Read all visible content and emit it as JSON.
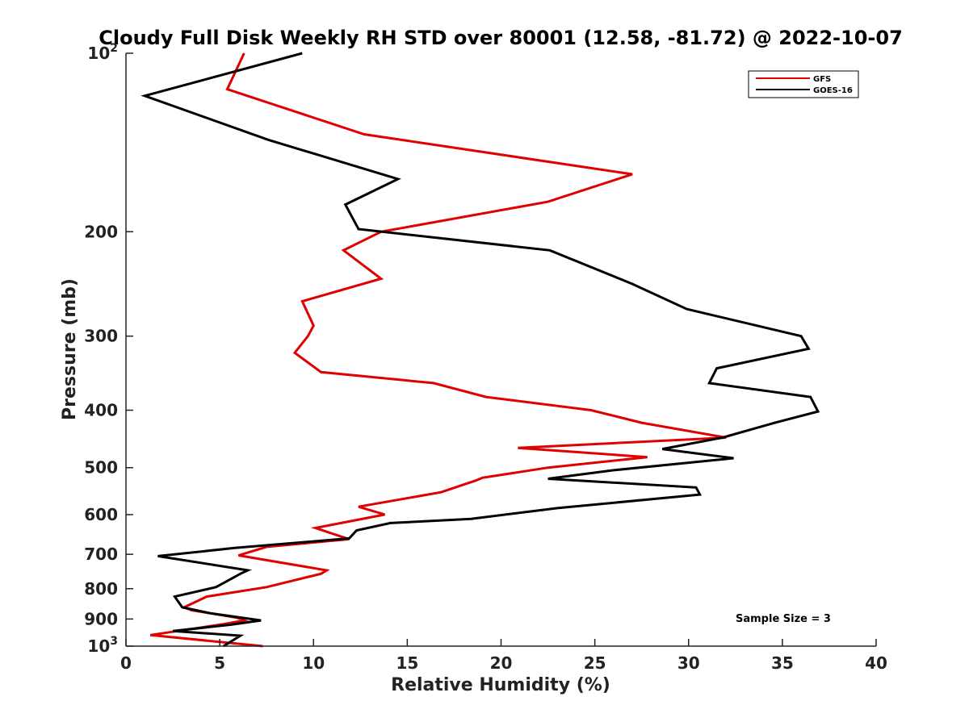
{
  "chart_data": {
    "type": "line",
    "title": "Cloudy Full Disk Weekly RH STD over 80001 (12.58, -81.72) @ 2022-10-07",
    "xlabel": "Relative Humidity (%)",
    "ylabel": "Pressure (mb)",
    "xlim": [
      0,
      40
    ],
    "ylim": [
      100,
      1000
    ],
    "y_scale": "log",
    "y_reversed": true,
    "x_ticks": [
      0,
      5,
      10,
      15,
      20,
      25,
      30,
      35,
      40
    ],
    "y_ticks": [
      {
        "value": 100,
        "label": "10",
        "sup": "2"
      },
      {
        "value": 200,
        "label": "200"
      },
      {
        "value": 300,
        "label": "300"
      },
      {
        "value": 400,
        "label": "400"
      },
      {
        "value": 500,
        "label": "500"
      },
      {
        "value": 600,
        "label": "600"
      },
      {
        "value": 700,
        "label": "700"
      },
      {
        "value": 800,
        "label": "800"
      },
      {
        "value": 900,
        "label": "900"
      },
      {
        "value": 1000,
        "label": "10",
        "sup": "3"
      }
    ],
    "grid": false,
    "legend_position": "top-right",
    "annotation": "Sample Size = 3",
    "series": [
      {
        "name": "GFS",
        "color": "#e00000",
        "points": [
          [
            6.3,
            100
          ],
          [
            5.4,
            115
          ],
          [
            12.7,
            137
          ],
          [
            27.0,
            160
          ],
          [
            22.5,
            178
          ],
          [
            13.6,
            200
          ],
          [
            11.6,
            215
          ],
          [
            13.6,
            240
          ],
          [
            9.4,
            262
          ],
          [
            10.0,
            288
          ],
          [
            9.7,
            300
          ],
          [
            9.0,
            320
          ],
          [
            10.4,
            345
          ],
          [
            16.4,
            360
          ],
          [
            19.2,
            380
          ],
          [
            24.8,
            400
          ],
          [
            27.5,
            420
          ],
          [
            32.0,
            445
          ],
          [
            20.9,
            463
          ],
          [
            27.8,
            480
          ],
          [
            22.5,
            500
          ],
          [
            19.0,
            520
          ],
          [
            18.7,
            525
          ],
          [
            16.8,
            550
          ],
          [
            12.4,
            582
          ],
          [
            13.8,
            600
          ],
          [
            10.1,
            632
          ],
          [
            11.9,
            660
          ],
          [
            7.5,
            680
          ],
          [
            6.0,
            703
          ],
          [
            10.7,
            745
          ],
          [
            10.4,
            755
          ],
          [
            7.5,
            795
          ],
          [
            4.3,
            825
          ],
          [
            3.1,
            860
          ],
          [
            3.5,
            870
          ],
          [
            5.9,
            895
          ],
          [
            6.3,
            905
          ],
          [
            5.2,
            918
          ],
          [
            1.3,
            958
          ],
          [
            7.3,
            1000
          ]
        ]
      },
      {
        "name": "GOES-16",
        "color": "#000000",
        "points": [
          [
            9.4,
            100
          ],
          [
            1.0,
            118
          ],
          [
            7.6,
            140
          ],
          [
            14.5,
            163
          ],
          [
            11.7,
            180
          ],
          [
            12.4,
            198
          ],
          [
            22.6,
            215
          ],
          [
            27.0,
            245
          ],
          [
            29.9,
            270
          ],
          [
            36.0,
            300
          ],
          [
            36.4,
            315
          ],
          [
            31.5,
            340
          ],
          [
            31.1,
            360
          ],
          [
            36.5,
            380
          ],
          [
            36.9,
            402
          ],
          [
            34.6,
            420
          ],
          [
            31.8,
            445
          ],
          [
            28.6,
            465
          ],
          [
            32.4,
            482
          ],
          [
            26.0,
            505
          ],
          [
            22.5,
            522
          ],
          [
            30.4,
            540
          ],
          [
            30.6,
            555
          ],
          [
            23.0,
            585
          ],
          [
            18.4,
            610
          ],
          [
            14.1,
            620
          ],
          [
            12.3,
            638
          ],
          [
            11.9,
            658
          ],
          [
            5.8,
            683
          ],
          [
            1.7,
            705
          ],
          [
            6.5,
            745
          ],
          [
            6.1,
            755
          ],
          [
            4.8,
            795
          ],
          [
            2.6,
            825
          ],
          [
            3.0,
            860
          ],
          [
            4.5,
            880
          ],
          [
            7.2,
            905
          ],
          [
            5.6,
            920
          ],
          [
            2.5,
            943
          ],
          [
            6.1,
            960
          ],
          [
            5.2,
            1000
          ]
        ]
      }
    ]
  }
}
